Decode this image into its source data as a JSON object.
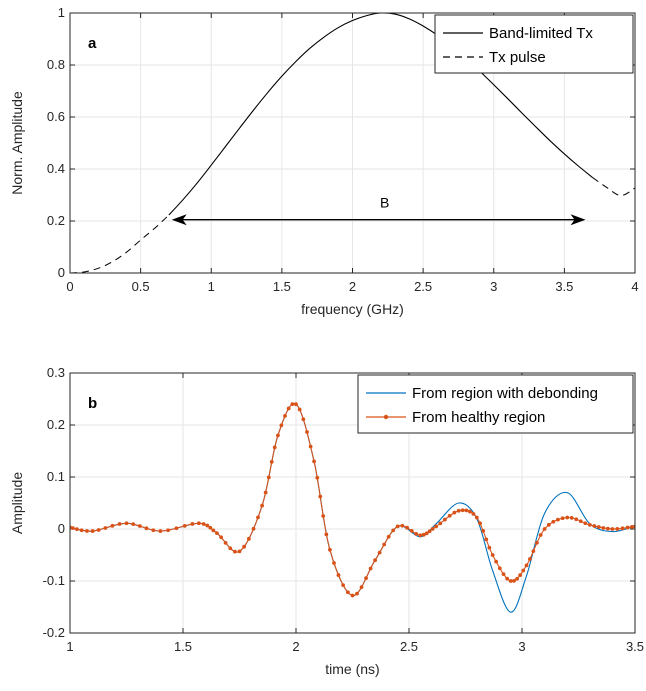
{
  "chart_data": [
    {
      "type": "line",
      "panel_label": "a",
      "xlabel": "frequency (GHz)",
      "ylabel": "Norm. Amplitude",
      "xlim": [
        0,
        4
      ],
      "ylim": [
        0,
        1
      ],
      "xticks": [
        "0",
        "0.5",
        "1",
        "1.5",
        "2",
        "2.5",
        "3",
        "3.5",
        "4"
      ],
      "yticks": [
        "0",
        "0.2",
        "0.4",
        "0.6",
        "0.8",
        "1"
      ],
      "grid": true,
      "legend_position": "top-right",
      "series": [
        {
          "name": "Band-limited Tx",
          "style": "solid",
          "color": "#000000",
          "x": [
            0.7,
            0.8,
            0.9,
            1.0,
            1.1,
            1.2,
            1.3,
            1.4,
            1.5,
            1.6,
            1.7,
            1.8,
            1.9,
            2.0,
            2.1,
            2.2,
            2.3,
            2.4,
            2.5,
            2.6,
            2.7,
            2.8,
            2.9,
            3.0,
            3.1,
            3.2,
            3.3,
            3.4,
            3.5,
            3.6,
            3.7
          ],
          "y": [
            0.223,
            0.282,
            0.346,
            0.415,
            0.486,
            0.557,
            0.627,
            0.694,
            0.757,
            0.814,
            0.865,
            0.908,
            0.944,
            0.971,
            0.99,
            1.0,
            0.996,
            0.978,
            0.95,
            0.915,
            0.873,
            0.827,
            0.777,
            0.724,
            0.67,
            0.615,
            0.561,
            0.508,
            0.458,
            0.411,
            0.367
          ]
        },
        {
          "name": "Tx pulse",
          "style": "dashed",
          "color": "#000000",
          "x": [
            0,
            0.1,
            0.2,
            0.3,
            0.4,
            0.5,
            0.6,
            0.7,
            3.7,
            3.8,
            3.9,
            4.0
          ],
          "y": [
            0,
            0.004,
            0.018,
            0.043,
            0.08,
            0.127,
            0.172,
            0.223,
            0.367,
            0.329,
            0.298,
            0.327
          ]
        }
      ],
      "annotations": [
        {
          "text": "B",
          "arrow_x": [
            0.72,
            3.65
          ],
          "arrow_y": 0.205
        }
      ]
    },
    {
      "type": "line",
      "panel_label": "b",
      "xlabel": "time (ns)",
      "ylabel": "Amplitude",
      "xlim": [
        1,
        3.5
      ],
      "ylim": [
        -0.2,
        0.3
      ],
      "xticks": [
        "1",
        "1.5",
        "2",
        "2.5",
        "3",
        "3.5"
      ],
      "yticks": [
        "-0.2",
        "-0.1",
        "0",
        "0.1",
        "0.2",
        "0.3"
      ],
      "grid": true,
      "legend_position": "top-right",
      "series": [
        {
          "name": "From region with debonding",
          "style": "solid",
          "color": "#0072BD",
          "x": [
            1.0,
            1.1,
            1.25,
            1.4,
            1.57,
            1.65,
            1.75,
            1.85,
            1.92,
            2.0,
            2.08,
            2.15,
            2.25,
            2.35,
            2.45,
            2.55,
            2.62,
            2.72,
            2.8,
            2.87,
            2.95,
            3.02,
            3.1,
            3.2,
            3.3,
            3.4,
            3.5
          ],
          "y": [
            0.003,
            -0.004,
            0.011,
            -0.004,
            0.011,
            -0.008,
            -0.043,
            0.045,
            0.18,
            0.24,
            0.13,
            -0.04,
            -0.128,
            -0.06,
            0.005,
            -0.015,
            0.01,
            0.05,
            0.02,
            -0.08,
            -0.16,
            -0.09,
            0.03,
            0.07,
            0.01,
            -0.005,
            0.006
          ]
        },
        {
          "name": "From healthy region",
          "style": "solid-marker",
          "color": "#D95319",
          "x": [
            1.0,
            1.1,
            1.25,
            1.4,
            1.57,
            1.65,
            1.75,
            1.85,
            1.92,
            2.0,
            2.08,
            2.15,
            2.25,
            2.35,
            2.45,
            2.55,
            2.62,
            2.72,
            2.8,
            2.87,
            2.95,
            3.02,
            3.1,
            3.2,
            3.3,
            3.4,
            3.5
          ],
          "y": [
            0.003,
            -0.004,
            0.011,
            -0.004,
            0.011,
            -0.008,
            -0.043,
            0.045,
            0.18,
            0.24,
            0.13,
            -0.04,
            -0.128,
            -0.06,
            0.005,
            -0.012,
            0.005,
            0.035,
            0.022,
            -0.05,
            -0.1,
            -0.07,
            0.0,
            0.022,
            0.008,
            0.0,
            0.005
          ]
        }
      ]
    }
  ]
}
